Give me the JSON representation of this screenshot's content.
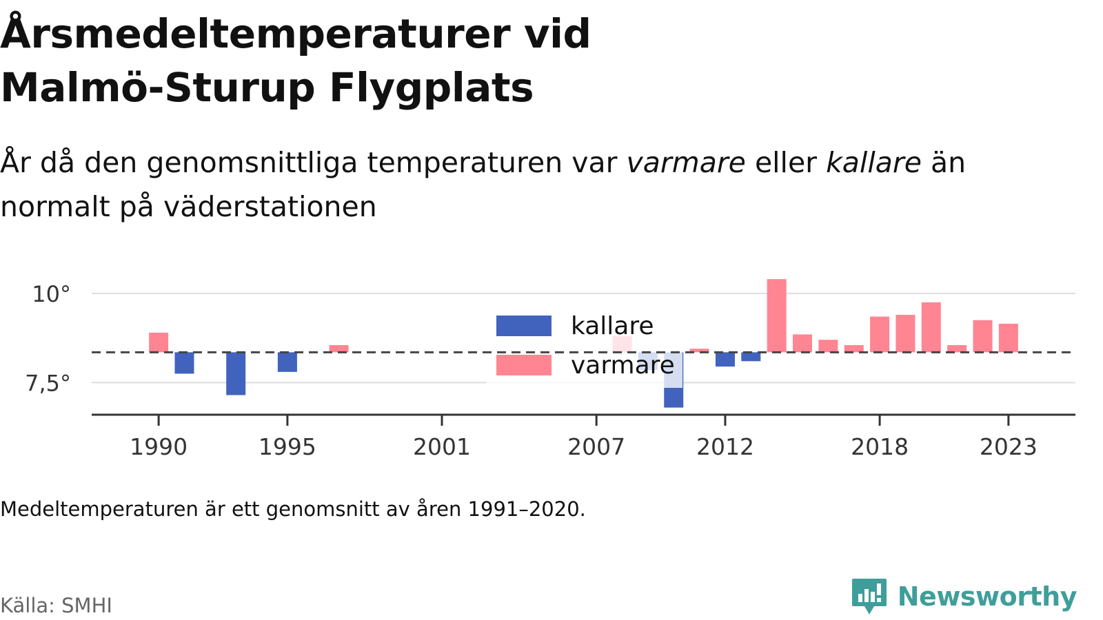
{
  "header": {
    "title": "Årsmedeltemperaturer vid Malmö-Sturup Flygplats",
    "subtitle_parts": [
      "År då den genomsnittliga temperaturen var ",
      "varmare",
      " eller ",
      "kallare",
      " än normalt på väderstationen"
    ]
  },
  "footer": {
    "note": "Medeltemperaturen är ett genomsnitt av åren 1991–2020.",
    "source": "Källa: SMHI",
    "brand": "Newsworthy"
  },
  "colors": {
    "warmer": "#ff8593",
    "colder": "#4163be",
    "axis": "#333333",
    "grid": "#dddddd",
    "reference_line": "#444444",
    "brand": "#3f9e9a"
  },
  "chart_data": {
    "type": "bar",
    "reference_value": 8.35,
    "ylim": [
      6.6,
      10.5
    ],
    "xlim": [
      1987.4,
      2025.6
    ],
    "y_ticks": [
      {
        "value": 10,
        "label": "10°"
      },
      {
        "value": 7.5,
        "label": "7,5°"
      }
    ],
    "x_ticks": [
      1990,
      1995,
      2001,
      2007,
      2012,
      2018,
      2023
    ],
    "legend": {
      "position": "top-center",
      "items": [
        {
          "label": "kallare",
          "key": "colder"
        },
        {
          "label": "varmare",
          "key": "warmer"
        }
      ]
    },
    "x": [
      1990,
      1991,
      1993,
      1995,
      1997,
      2008,
      2009,
      2010,
      2011,
      2012,
      2013,
      2014,
      2015,
      2016,
      2017,
      2018,
      2019,
      2020,
      2021,
      2022,
      2023
    ],
    "values": [
      8.9,
      7.75,
      7.15,
      7.8,
      8.55,
      8.8,
      7.85,
      6.8,
      8.45,
      7.95,
      8.1,
      10.4,
      8.85,
      8.7,
      8.55,
      9.35,
      9.4,
      9.75,
      8.55,
      9.25,
      9.15
    ]
  }
}
